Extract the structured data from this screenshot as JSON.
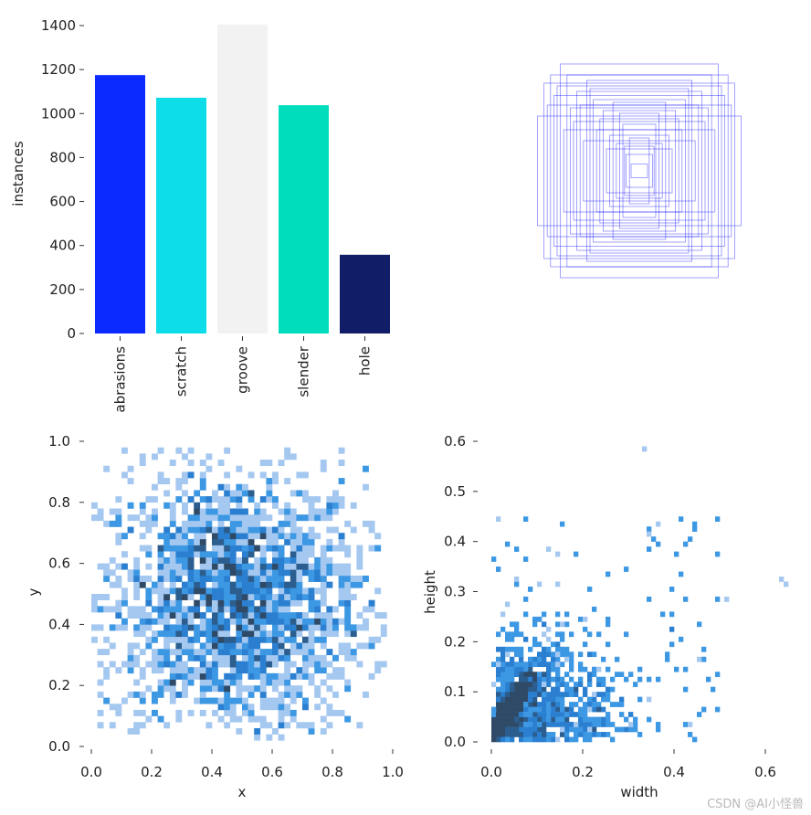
{
  "watermark": "CSDN @AI小怪兽",
  "chart_data": [
    {
      "type": "bar",
      "title": "",
      "xlabel": "",
      "ylabel": "instances",
      "categories": [
        "abrasions",
        "scratch",
        "groove",
        "slender",
        "hole"
      ],
      "values": [
        1175,
        1072,
        1405,
        1038,
        358
      ],
      "colors": [
        "#0a2aff",
        "#0cdde8",
        "#f2f2f2",
        "#00ddbd",
        "#111d66"
      ],
      "ylim": [
        0,
        1400
      ],
      "yticks": [
        0,
        200,
        400,
        600,
        800,
        1000,
        1200,
        1400
      ]
    },
    {
      "type": "scatter",
      "title": "",
      "description_type": "overlaid bounding boxes centered on image center",
      "box_color": "#0000ff",
      "boxes": [
        {
          "w": 0.58,
          "h": 0.64
        },
        {
          "w": 0.52,
          "h": 0.55
        },
        {
          "w": 0.48,
          "h": 0.78
        },
        {
          "w": 0.62,
          "h": 0.4
        },
        {
          "w": 0.44,
          "h": 0.7
        },
        {
          "w": 0.36,
          "h": 0.48
        },
        {
          "w": 0.3,
          "h": 0.6
        },
        {
          "w": 0.4,
          "h": 0.36
        },
        {
          "w": 0.26,
          "h": 0.3
        },
        {
          "w": 0.22,
          "h": 0.44
        },
        {
          "w": 0.18,
          "h": 0.26
        },
        {
          "w": 0.14,
          "h": 0.2
        },
        {
          "w": 0.1,
          "h": 0.34
        },
        {
          "w": 0.08,
          "h": 0.12
        },
        {
          "w": 0.34,
          "h": 0.22
        },
        {
          "w": 0.2,
          "h": 0.16
        },
        {
          "w": 0.28,
          "h": 0.52
        },
        {
          "w": 0.12,
          "h": 0.42
        },
        {
          "w": 0.46,
          "h": 0.3
        },
        {
          "w": 0.54,
          "h": 0.7
        },
        {
          "w": 0.16,
          "h": 0.5
        },
        {
          "w": 0.24,
          "h": 0.38
        },
        {
          "w": 0.06,
          "h": 0.24
        },
        {
          "w": 0.32,
          "h": 0.66
        },
        {
          "w": 0.38,
          "h": 0.58
        },
        {
          "w": 0.42,
          "h": 0.46
        },
        {
          "w": 0.5,
          "h": 0.62
        },
        {
          "w": 0.05,
          "h": 0.05
        },
        {
          "w": 0.09,
          "h": 0.18
        },
        {
          "w": 0.56,
          "h": 0.48
        }
      ]
    },
    {
      "type": "heatmap",
      "xlabel": "x",
      "ylabel": "y",
      "xlim": [
        0.0,
        1.0
      ],
      "ylim": [
        0.0,
        1.0
      ],
      "xticks": [
        "0.0",
        "0.2",
        "0.4",
        "0.6",
        "0.8",
        "1.0"
      ],
      "yticks": [
        "0.0",
        "0.2",
        "0.4",
        "0.6",
        "0.8",
        "1.0"
      ],
      "bins": 50,
      "distribution": {
        "center_x": 0.47,
        "center_y": 0.47,
        "spread": 0.22
      },
      "color_scale": [
        "#a5c8f0",
        "#3d98e4",
        "#2b7fd0",
        "#2b5e8e",
        "#2f4a66"
      ]
    },
    {
      "type": "heatmap",
      "xlabel": "width",
      "ylabel": "height",
      "xlim": [
        0.0,
        0.65
      ],
      "ylim": [
        0.0,
        0.6
      ],
      "xticks": [
        "0.0",
        "0.2",
        "0.4",
        "0.6"
      ],
      "yticks": [
        "0.0",
        "0.1",
        "0.2",
        "0.3",
        "0.4",
        "0.5",
        "0.6"
      ],
      "bins_step": 0.01,
      "color_scale": [
        "#a5c8f0",
        "#3d98e4",
        "#2b7fd0",
        "#2b5e8e",
        "#2f4a66"
      ]
    }
  ]
}
